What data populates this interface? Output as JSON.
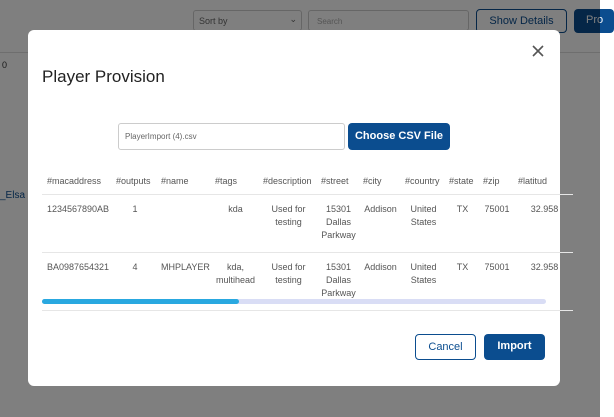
{
  "background": {
    "sort_label": "Sort by",
    "search_placeholder": "Search",
    "show_details": "Show Details",
    "primary_button": "Pro",
    "left_fragment_1": "0",
    "left_fragment_2": "_Elsa"
  },
  "modal": {
    "title": "Player Provision",
    "file_name": "PlayerImport (4).csv",
    "choose_button": "Choose CSV File",
    "table": {
      "headers": [
        "#macaddress",
        "#outputs",
        "#name",
        "#tags",
        "#description",
        "#street",
        "#city",
        "#country",
        "#state",
        "#zip",
        "#latitud"
      ],
      "rows": [
        [
          "1234567890AB",
          "1",
          null,
          "kda",
          "Used for testing",
          "15301 Dallas Parkway",
          "Addison",
          "United States",
          "TX",
          "75001",
          "32.958"
        ],
        [
          "BA0987654321",
          "4",
          "MHPLAYER",
          "kda, multihead",
          "Used for testing",
          "15301 Dallas Parkway",
          "Addison",
          "United States",
          "TX",
          "75001",
          "32.958"
        ]
      ]
    },
    "progress": 39,
    "cancel_button": "Cancel",
    "import_button": "Import"
  }
}
